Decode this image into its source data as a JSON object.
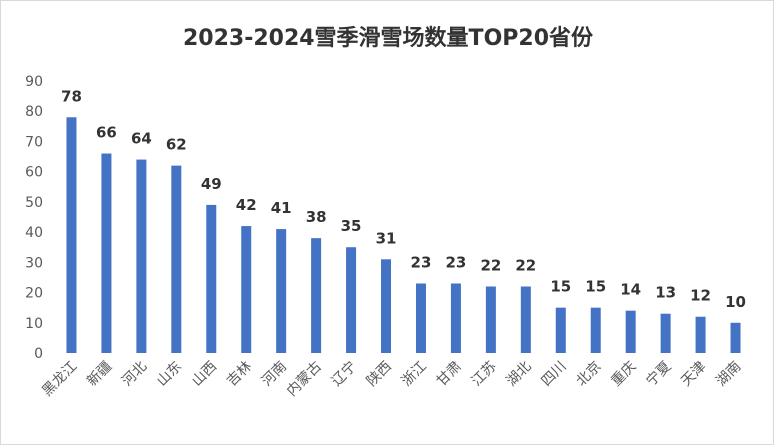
{
  "chart_data": {
    "type": "bar",
    "title": "2023-2024雪季滑雪场数量TOP20省份",
    "xlabel": "",
    "ylabel": "",
    "ylim": [
      0,
      90
    ],
    "yticks": [
      0,
      10,
      20,
      30,
      40,
      50,
      60,
      70,
      80,
      90
    ],
    "grid": false,
    "legend": "none",
    "bar_color": "#4472C4",
    "categories": [
      "黑龙江",
      "新疆",
      "河北",
      "山东",
      "山西",
      "吉林",
      "河南",
      "内蒙古",
      "辽宁",
      "陕西",
      "浙江",
      "甘肃",
      "江苏",
      "湖北",
      "四川",
      "北京",
      "重庆",
      "宁夏",
      "天津",
      "湖南"
    ],
    "values": [
      78,
      66,
      64,
      62,
      49,
      42,
      41,
      38,
      35,
      31,
      23,
      23,
      22,
      22,
      15,
      15,
      14,
      13,
      12,
      10
    ],
    "data_labels": true
  }
}
